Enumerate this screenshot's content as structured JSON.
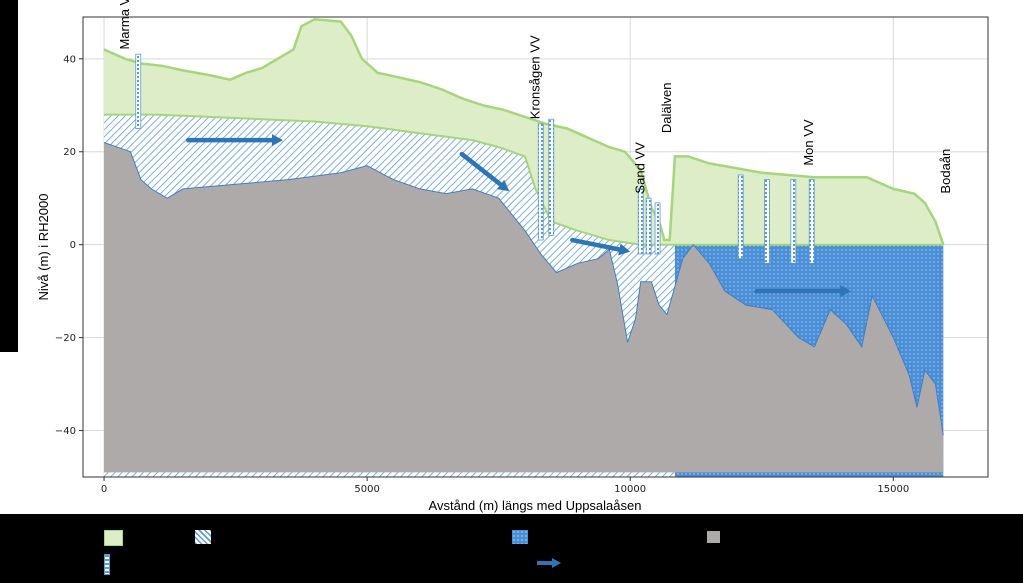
{
  "diagram": {
    "xlabel": "Avstånd (m) längs med Uppsalaåsen",
    "ylabel": "Nivå (m) i RH2000",
    "xlim": [
      -400,
      16800
    ],
    "ylim": [
      -50,
      49
    ],
    "x_ticks": [
      0,
      5000,
      10000,
      15000
    ],
    "y_ticks": [
      40,
      20,
      0,
      -20,
      -40
    ],
    "grid": true,
    "colors": {
      "soil": "#dcedc8",
      "soil_edge": "#a5d67a",
      "aquifer_hatch": "#5b9bd5",
      "aquifer_dense": "#4a8fd6",
      "bedrock": "#aeaaaa",
      "arrow": "#2e75b6"
    },
    "places": [
      {
        "label": "Marma VV",
        "x": 400,
        "y": 42
      },
      {
        "label": "Kronsågen VV",
        "x": 8200,
        "y": 27
      },
      {
        "label": "Sand VV",
        "x": 10200,
        "y": 11
      },
      {
        "label": "Dalälven",
        "x": 10700,
        "y": 24
      },
      {
        "label": "Mon VV",
        "x": 13400,
        "y": 17
      },
      {
        "label": "Bodaån",
        "x": 16000,
        "y": 11
      }
    ],
    "wells": [
      {
        "x": 650,
        "top": 41,
        "bottom": 25
      },
      {
        "x": 8300,
        "top": 26,
        "bottom": 1
      },
      {
        "x": 8500,
        "top": 27,
        "bottom": 2
      },
      {
        "x": 10200,
        "top": 12,
        "bottom": -2
      },
      {
        "x": 10350,
        "top": 10,
        "bottom": -2
      },
      {
        "x": 10520,
        "top": 9,
        "bottom": -2
      },
      {
        "x": 12100,
        "top": 15,
        "bottom": -3
      },
      {
        "x": 12600,
        "top": 14,
        "bottom": -4
      },
      {
        "x": 13100,
        "top": 14,
        "bottom": -4
      },
      {
        "x": 13450,
        "top": 14,
        "bottom": -4
      }
    ],
    "flow_arrows": [
      {
        "x1": 1600,
        "y1": 22.5,
        "x2": 3400,
        "y2": 22.5
      },
      {
        "x1": 6800,
        "y1": 19.5,
        "x2": 7700,
        "y2": 11.5
      },
      {
        "x1": 8900,
        "y1": 1,
        "x2": 10000,
        "y2": -1.5
      },
      {
        "x1": 12400,
        "y1": -10,
        "x2": 14200,
        "y2": -10
      }
    ],
    "ground_surface": [
      [
        0,
        42
      ],
      [
        400,
        40
      ],
      [
        700,
        39
      ],
      [
        1100,
        38.5
      ],
      [
        1500,
        37.5
      ],
      [
        2000,
        36.5
      ],
      [
        2400,
        35.5
      ],
      [
        2700,
        37
      ],
      [
        3000,
        38
      ],
      [
        3300,
        40
      ],
      [
        3600,
        42
      ],
      [
        3750,
        47
      ],
      [
        4000,
        48.5
      ],
      [
        4500,
        48
      ],
      [
        4700,
        45
      ],
      [
        4900,
        40
      ],
      [
        5200,
        37
      ],
      [
        5600,
        36
      ],
      [
        6000,
        35
      ],
      [
        6400,
        33.5
      ],
      [
        6800,
        31.5
      ],
      [
        7200,
        30
      ],
      [
        7600,
        29
      ],
      [
        8000,
        27.5
      ],
      [
        8400,
        26
      ],
      [
        8800,
        25
      ],
      [
        9200,
        23
      ],
      [
        9600,
        21
      ],
      [
        9900,
        20
      ],
      [
        10200,
        16
      ],
      [
        10400,
        8
      ],
      [
        10550,
        5
      ],
      [
        10650,
        1
      ],
      [
        10750,
        1
      ],
      [
        10850,
        19
      ],
      [
        11100,
        19
      ],
      [
        11500,
        17.5
      ],
      [
        12000,
        16.5
      ],
      [
        12500,
        15.5
      ],
      [
        13000,
        15
      ],
      [
        13500,
        14.5
      ],
      [
        14000,
        14.5
      ],
      [
        14500,
        14.5
      ],
      [
        15000,
        12
      ],
      [
        15400,
        11
      ],
      [
        15600,
        9
      ],
      [
        15800,
        5
      ],
      [
        15950,
        0
      ]
    ],
    "water_table": [
      [
        0,
        28
      ],
      [
        1000,
        28
      ],
      [
        2000,
        27.5
      ],
      [
        3000,
        27
      ],
      [
        4000,
        26.5
      ],
      [
        5000,
        25.5
      ],
      [
        6000,
        24
      ],
      [
        7000,
        22.5
      ],
      [
        7500,
        21
      ],
      [
        8000,
        19
      ],
      [
        8200,
        12
      ],
      [
        8500,
        5
      ],
      [
        9000,
        3
      ],
      [
        9600,
        1
      ],
      [
        10200,
        0
      ],
      [
        10700,
        0
      ],
      [
        11000,
        0
      ],
      [
        12000,
        0
      ],
      [
        13000,
        0
      ],
      [
        14000,
        0
      ],
      [
        15000,
        0
      ],
      [
        15950,
        0
      ]
    ],
    "bedrock_surface": [
      [
        0,
        22
      ],
      [
        500,
        20
      ],
      [
        700,
        14
      ],
      [
        900,
        12
      ],
      [
        1200,
        10
      ],
      [
        1500,
        12
      ],
      [
        2500,
        13
      ],
      [
        3500,
        14
      ],
      [
        4500,
        15.5
      ],
      [
        5000,
        17
      ],
      [
        5500,
        14
      ],
      [
        6000,
        12
      ],
      [
        6500,
        11
      ],
      [
        7000,
        12
      ],
      [
        7500,
        10
      ],
      [
        8000,
        3
      ],
      [
        8300,
        -2
      ],
      [
        8600,
        -6
      ],
      [
        9000,
        -4
      ],
      [
        9400,
        -3
      ],
      [
        9600,
        -1
      ],
      [
        9750,
        -8
      ],
      [
        9950,
        -21
      ],
      [
        10100,
        -16
      ],
      [
        10200,
        -8
      ],
      [
        10400,
        -8
      ],
      [
        10550,
        -13
      ],
      [
        10700,
        -15
      ],
      [
        10850,
        -9
      ],
      [
        11000,
        -3
      ],
      [
        11200,
        0
      ],
      [
        11500,
        -4
      ],
      [
        11800,
        -10
      ],
      [
        12200,
        -13
      ],
      [
        12700,
        -14
      ],
      [
        13200,
        -20
      ],
      [
        13500,
        -22
      ],
      [
        13800,
        -14
      ],
      [
        14100,
        -17
      ],
      [
        14400,
        -22
      ],
      [
        14600,
        -11
      ],
      [
        15000,
        -20
      ],
      [
        15300,
        -28
      ],
      [
        15450,
        -35
      ],
      [
        15600,
        -27
      ],
      [
        15800,
        -30
      ],
      [
        15950,
        -41
      ],
      [
        15950,
        -49
      ],
      [
        0,
        -49
      ]
    ]
  }
}
